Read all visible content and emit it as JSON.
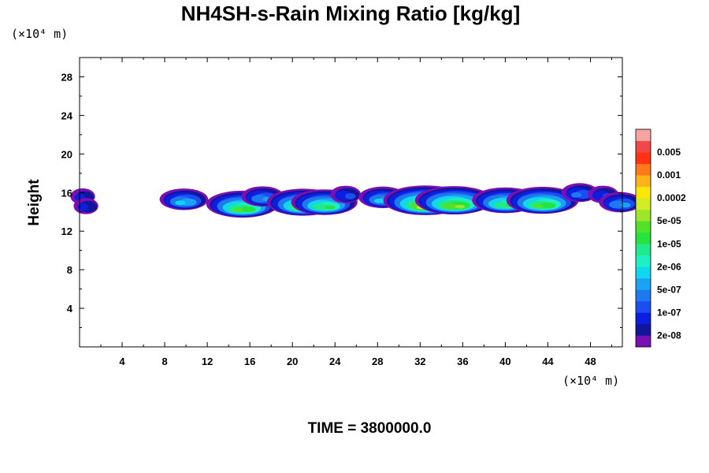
{
  "chart_data": {
    "type": "heatmap",
    "title": "NH4SH-s-Rain Mixing Ratio [kg/kg]",
    "ylabel": "Height",
    "x_unit": "(×10⁴ m)",
    "y_unit": "(×10⁴ m)",
    "xlim": [
      0,
      51
    ],
    "ylim": [
      0,
      30
    ],
    "x_ticks": [
      4,
      8,
      12,
      16,
      20,
      24,
      28,
      32,
      36,
      40,
      44,
      48
    ],
    "y_ticks": [
      4,
      8,
      12,
      16,
      20,
      24,
      28
    ],
    "colorbar": {
      "levels": [
        "1e-08",
        "2e-08",
        "5e-08",
        "1e-07",
        "2e-07",
        "5e-07",
        "1e-06",
        "2e-06",
        "5e-06",
        "1e-05",
        "2e-05",
        "5e-05",
        "0.0001",
        "0.0002",
        "0.0005",
        "0.001",
        "0.002",
        "0.005",
        "0.01"
      ],
      "labels": [
        "2e-08",
        "1e-07",
        "5e-07",
        "2e-06",
        "1e-05",
        "5e-05",
        "0.0002",
        "0.001",
        "0.005"
      ],
      "colors": [
        "#7a0fb5",
        "#13169a",
        "#0c1ee0",
        "#1b4df0",
        "#1e78ee",
        "#1ca2f2",
        "#12d6ef",
        "#1ef0c4",
        "#22e98b",
        "#27e23f",
        "#53e12a",
        "#9ee62b",
        "#d4ec25",
        "#fbe70c",
        "#ffb21b",
        "#ff7a1c",
        "#ff3214",
        "#ef4848",
        "#f7a3a3"
      ]
    },
    "cells": [
      {
        "x": 0.3,
        "z": 15.6,
        "level": 2
      },
      {
        "x": 0.6,
        "z": 14.6,
        "level": 2
      },
      {
        "x": 9.8,
        "z": 15.3,
        "level": 6
      },
      {
        "x": 15.3,
        "z": 14.8,
        "level": 10
      },
      {
        "x": 17.2,
        "z": 15.6,
        "level": 5
      },
      {
        "x": 21.0,
        "z": 15.0,
        "level": 10
      },
      {
        "x": 23.0,
        "z": 15.0,
        "level": 9
      },
      {
        "x": 25.0,
        "z": 15.8,
        "level": 3
      },
      {
        "x": 28.5,
        "z": 15.5,
        "level": 6
      },
      {
        "x": 32.5,
        "z": 15.2,
        "level": 12
      },
      {
        "x": 35.2,
        "z": 15.2,
        "level": 11
      },
      {
        "x": 40.0,
        "z": 15.2,
        "level": 9
      },
      {
        "x": 43.5,
        "z": 15.2,
        "level": 10
      },
      {
        "x": 47.0,
        "z": 16.0,
        "level": 4
      },
      {
        "x": 49.2,
        "z": 15.8,
        "level": 3
      },
      {
        "x": 50.8,
        "z": 15.0,
        "level": 5
      }
    ]
  },
  "footer": {
    "time_label": "TIME = 3800000.0"
  }
}
